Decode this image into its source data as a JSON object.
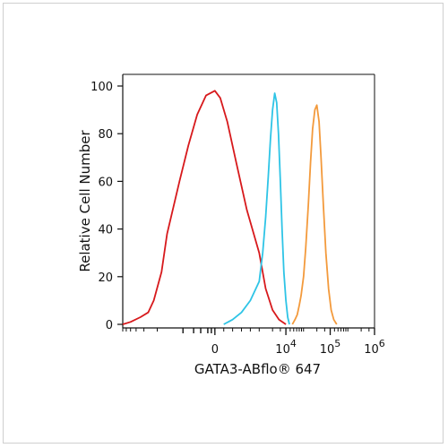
{
  "chart_data": {
    "type": "line",
    "title": "",
    "xlabel": "GATA3-ABflo® 647",
    "ylabel": "Relative Cell Number",
    "x_scale": "biexponential",
    "ylim": [
      0,
      100
    ],
    "y_ticks": [
      0,
      20,
      40,
      60,
      80,
      100
    ],
    "x_tick_labels": [
      {
        "base": "0",
        "exp": ""
      },
      {
        "base": "10",
        "exp": "4"
      },
      {
        "base": "10",
        "exp": "5"
      },
      {
        "base": "10",
        "exp": "6"
      }
    ],
    "grid": false,
    "legend": "none",
    "series": [
      {
        "color": "#d7191c",
        "x": [
          -30000,
          -20000,
          -12000,
          -8000,
          -6000,
          -4000,
          -3000,
          -2000,
          -1500,
          -1000,
          -500,
          0,
          300,
          700,
          1200,
          1800,
          2500,
          3500,
          5000,
          7000,
          10000
        ],
        "y": [
          0,
          1,
          3,
          5,
          10,
          22,
          38,
          60,
          75,
          88,
          96,
          98,
          95,
          85,
          68,
          48,
          30,
          15,
          6,
          2,
          0
        ]
      },
      {
        "color": "#2ec4e6",
        "x": [
          500,
          1000,
          1500,
          2000,
          2500,
          3000,
          3500,
          4000,
          4500,
          5000,
          5600,
          6200,
          6800,
          7500,
          8200,
          9000,
          10000,
          11000,
          12000
        ],
        "y": [
          0,
          2,
          5,
          10,
          18,
          30,
          45,
          62,
          78,
          90,
          97,
          93,
          80,
          60,
          40,
          22,
          10,
          3,
          0
        ]
      },
      {
        "color": "#f39a3c",
        "x": [
          14000,
          16000,
          18000,
          20000,
          22000,
          25000,
          28000,
          32000,
          36000,
          40000,
          45000,
          50000,
          56000,
          62000,
          70000,
          80000,
          92000,
          105000,
          120000,
          140000
        ],
        "y": [
          0,
          2,
          4,
          8,
          12,
          20,
          32,
          50,
          68,
          82,
          90,
          92,
          85,
          70,
          50,
          30,
          15,
          6,
          2,
          0
        ]
      }
    ]
  }
}
